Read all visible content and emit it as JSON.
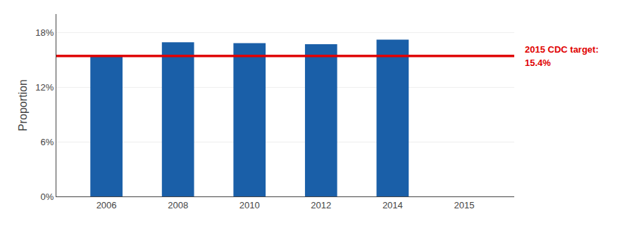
{
  "chart_data": {
    "type": "bar",
    "categories": [
      "2006",
      "2008",
      "2010",
      "2012",
      "2014",
      "2015"
    ],
    "values": [
      15.5,
      16.9,
      16.8,
      16.7,
      17.2,
      null
    ],
    "color": "#1a5fa8",
    "ylabel": "Proportion",
    "ylim": [
      0,
      20.0
    ],
    "yticks": [
      {
        "value": 0,
        "label": "0%"
      },
      {
        "value": 6,
        "label": "6%"
      },
      {
        "value": 12,
        "label": "12%"
      },
      {
        "value": 18,
        "label": "18%"
      }
    ],
    "grid": true,
    "target": {
      "value": 15.4,
      "color": "#e00000",
      "labels": [
        "2015 CDC target:",
        "15.4%"
      ]
    }
  }
}
